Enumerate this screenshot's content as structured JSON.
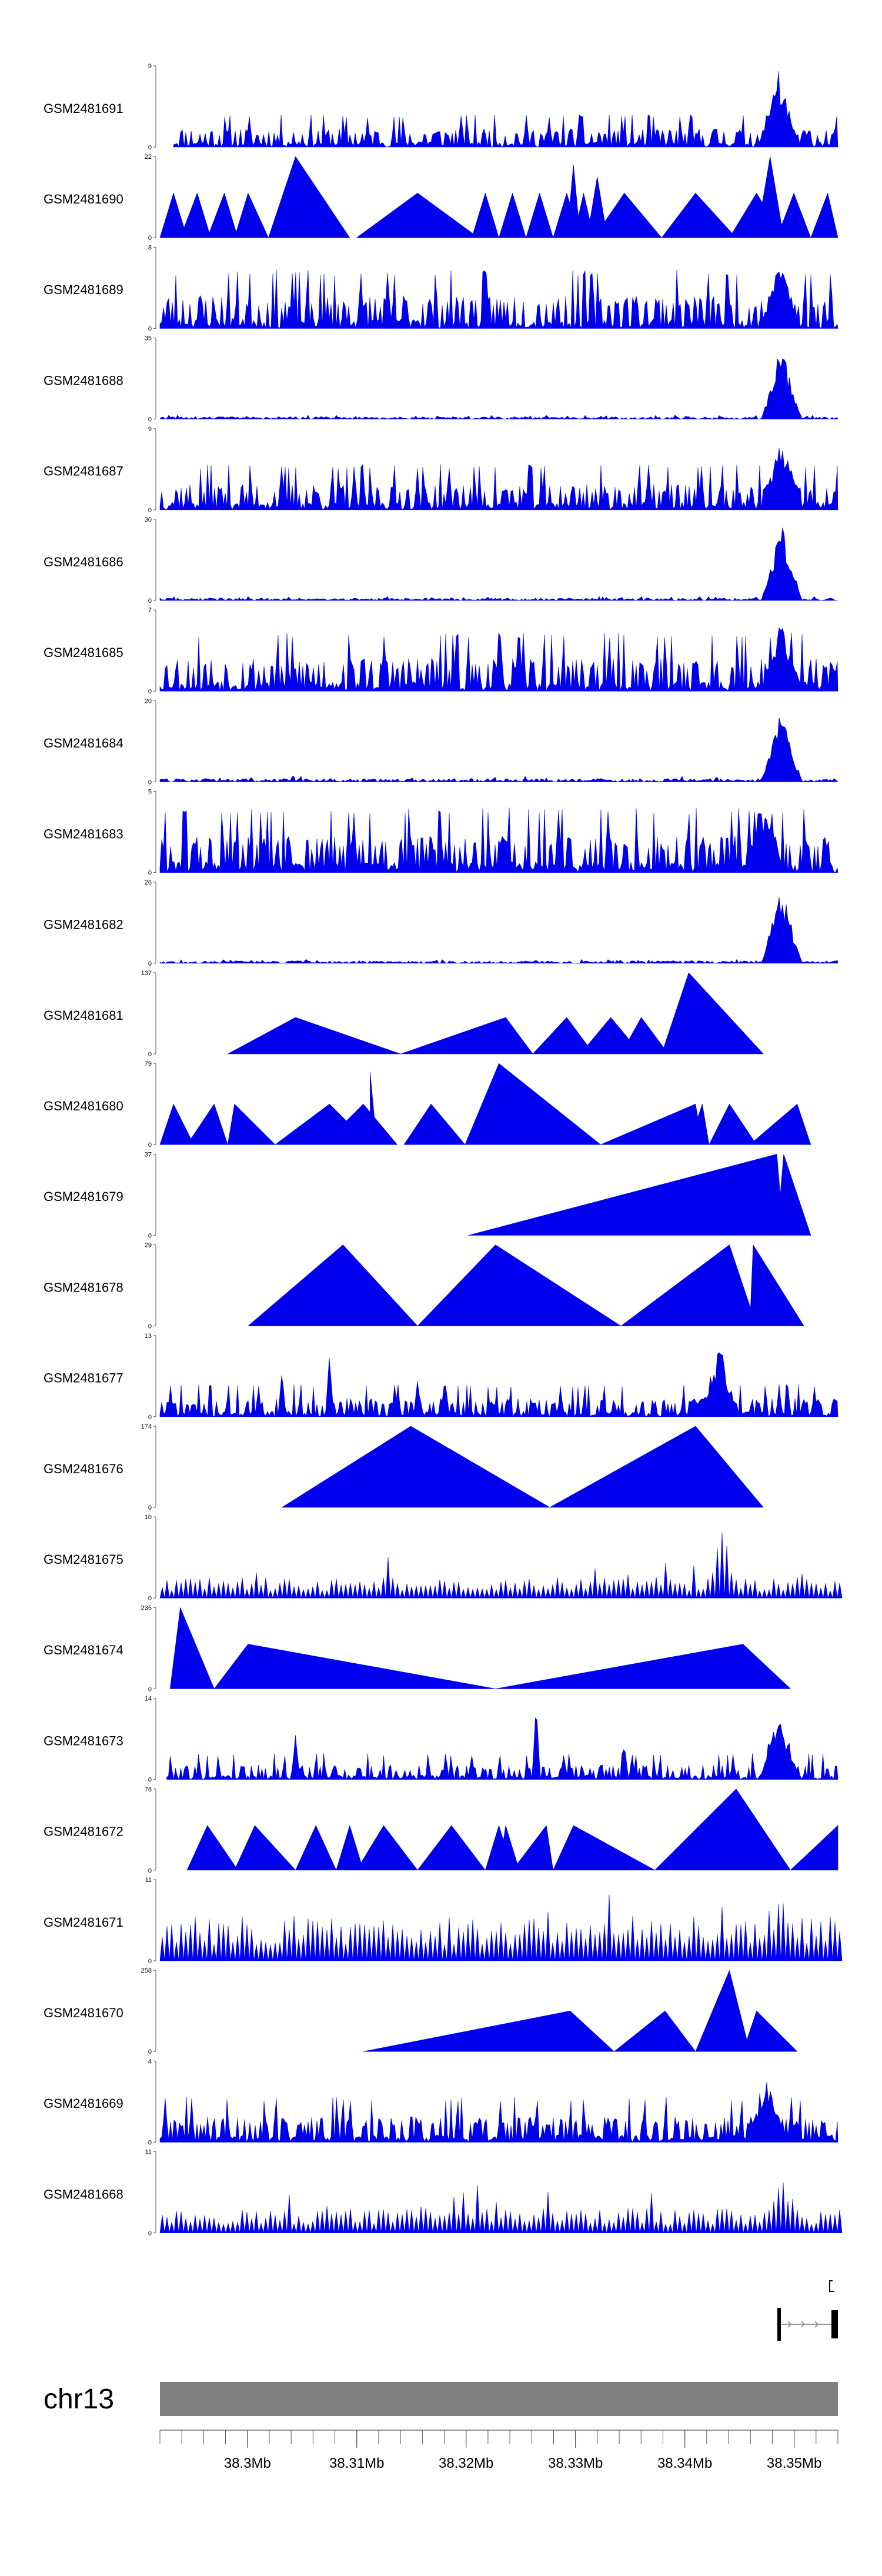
{
  "chart_data": {
    "type": "area",
    "title": "",
    "xlabel": "",
    "ylabel": "",
    "chromosome": "chr13",
    "xlim": [
      38.292,
      38.354
    ],
    "x_unit": "Mb",
    "x_ticks": [
      38.3,
      38.31,
      38.32,
      38.33,
      38.34,
      38.35
    ],
    "x_tick_labels": [
      "38.3Mb",
      "38.31Mb",
      "38.32Mb",
      "38.33Mb",
      "38.34Mb",
      "38.35Mb"
    ],
    "colors": {
      "fill": "#0000ee",
      "axis": "#555555",
      "ideogram": "#808080",
      "gene": "#000000",
      "intron": "#999999"
    },
    "tracks": [
      {
        "name": "GSM2481691",
        "ymax": "9",
        "profile": "dense-peaks",
        "seed": 11,
        "base_frac": 0.25,
        "peak_at": 0.912,
        "peak_frac": 1.0,
        "x_start": 0.02
      },
      {
        "name": "GSM2481690",
        "ymax": "22",
        "profile": "triangles",
        "triangles": [
          [
            0.0,
            0.02,
            0.04,
            0.55
          ],
          [
            0.03,
            0.055,
            0.075,
            0.55
          ],
          [
            0.07,
            0.095,
            0.115,
            0.55
          ],
          [
            0.11,
            0.13,
            0.16,
            0.55
          ],
          [
            0.16,
            0.2,
            0.28,
            1.0
          ],
          [
            0.29,
            0.38,
            0.47,
            0.55
          ],
          [
            0.46,
            0.48,
            0.5,
            0.55
          ],
          [
            0.5,
            0.52,
            0.54,
            0.55
          ],
          [
            0.54,
            0.56,
            0.58,
            0.55
          ],
          [
            0.58,
            0.6,
            0.62,
            0.55
          ],
          [
            0.61,
            0.625,
            0.64,
            0.55
          ],
          [
            0.6,
            0.61,
            0.62,
            0.9
          ],
          [
            0.63,
            0.645,
            0.66,
            0.75
          ],
          [
            0.64,
            0.685,
            0.74,
            0.55
          ],
          [
            0.74,
            0.79,
            0.85,
            0.55
          ],
          [
            0.84,
            0.88,
            0.92,
            0.55
          ],
          [
            0.88,
            0.9,
            0.92,
            1.0
          ],
          [
            0.91,
            0.935,
            0.96,
            0.55
          ],
          [
            0.96,
            0.985,
            1.0,
            0.55
          ]
        ]
      },
      {
        "name": "GSM2481689",
        "ymax": "8",
        "profile": "dense-peaks",
        "seed": 23,
        "base_frac": 0.45,
        "peak_at": 0.915,
        "peak_frac": 0.95,
        "x_start": 0.0
      },
      {
        "name": "GSM2481688",
        "ymax": "35",
        "profile": "sparse-peak",
        "seed": 31,
        "base_frac": 0.05,
        "peak_at": 0.917,
        "peak_frac": 0.95,
        "x_start": 0.0
      },
      {
        "name": "GSM2481687",
        "ymax": "9",
        "profile": "dense-peaks",
        "seed": 37,
        "base_frac": 0.35,
        "peak_at": 0.917,
        "peak_frac": 0.95,
        "x_start": 0.0
      },
      {
        "name": "GSM2481686",
        "ymax": "30",
        "profile": "sparse-peak",
        "seed": 41,
        "base_frac": 0.05,
        "peak_at": 0.917,
        "peak_frac": 0.95,
        "x_start": 0.0
      },
      {
        "name": "GSM2481685",
        "ymax": "7",
        "profile": "dense-peaks",
        "seed": 53,
        "base_frac": 0.45,
        "peak_at": 0.917,
        "peak_frac": 0.95,
        "x_start": 0.0
      },
      {
        "name": "GSM2481684",
        "ymax": "20",
        "profile": "sparse-peak",
        "seed": 59,
        "base_frac": 0.07,
        "peak_at": 0.917,
        "peak_frac": 0.95,
        "x_start": 0.0
      },
      {
        "name": "GSM2481683",
        "ymax": "5",
        "profile": "dense-peaks",
        "seed": 61,
        "base_frac": 0.5,
        "peak_at": 0.893,
        "peak_frac": 0.95,
        "x_start": 0.0
      },
      {
        "name": "GSM2481682",
        "ymax": "26",
        "profile": "sparse-peak",
        "seed": 67,
        "base_frac": 0.05,
        "peak_at": 0.917,
        "peak_frac": 0.95,
        "x_start": 0.0
      },
      {
        "name": "GSM2481681",
        "ymax": "137",
        "profile": "triangles",
        "triangles": [
          [
            0.1,
            0.2,
            0.355,
            0.45
          ],
          [
            0.355,
            0.51,
            0.55,
            0.45
          ],
          [
            0.55,
            0.6,
            0.64,
            0.45
          ],
          [
            0.62,
            0.665,
            0.71,
            0.45
          ],
          [
            0.68,
            0.71,
            0.75,
            0.45
          ],
          [
            0.74,
            0.78,
            0.89,
            0.45
          ],
          [
            0.74,
            0.78,
            0.89,
            1.0
          ]
        ]
      },
      {
        "name": "GSM2481680",
        "ymax": "79",
        "profile": "triangles",
        "triangles": [
          [
            0.0,
            0.02,
            0.05,
            0.5
          ],
          [
            0.04,
            0.08,
            0.1,
            0.5
          ],
          [
            0.1,
            0.11,
            0.17,
            0.5
          ],
          [
            0.17,
            0.25,
            0.31,
            0.5
          ],
          [
            0.24,
            0.3,
            0.35,
            0.5
          ],
          [
            0.31,
            0.31,
            0.32,
            0.9
          ],
          [
            0.36,
            0.4,
            0.45,
            0.5
          ],
          [
            0.45,
            0.5,
            0.65,
            1.0
          ],
          [
            0.65,
            0.79,
            0.8,
            0.5
          ],
          [
            0.78,
            0.8,
            0.81,
            0.5
          ],
          [
            0.81,
            0.84,
            0.88,
            0.5
          ],
          [
            0.87,
            0.94,
            0.96,
            0.5
          ],
          [
            0.93,
            0.94,
            0.95,
            0.5
          ]
        ]
      },
      {
        "name": "GSM2481679",
        "ymax": "37",
        "profile": "triangles",
        "triangles": [
          [
            0.455,
            0.91,
            0.92,
            1.0
          ],
          [
            0.91,
            0.92,
            0.96,
            1.0
          ]
        ]
      },
      {
        "name": "GSM2481678",
        "ymax": "29",
        "profile": "triangles",
        "triangles": [
          [
            0.13,
            0.27,
            0.38,
            1.0
          ],
          [
            0.38,
            0.495,
            0.68,
            1.0
          ],
          [
            0.68,
            0.84,
            0.88,
            1.0
          ],
          [
            0.87,
            0.875,
            0.95,
            1.0
          ]
        ]
      },
      {
        "name": "GSM2481677",
        "ymax": "13",
        "profile": "dense-peaks",
        "seed": 71,
        "base_frac": 0.25,
        "peak_at": 0.825,
        "peak_frac": 0.95,
        "x_start": 0.0,
        "extra_peaks": [
          [
            0.25,
            0.75
          ],
          [
            0.18,
            0.55
          ],
          [
            0.38,
            0.45
          ]
        ]
      },
      {
        "name": "GSM2481676",
        "ymax": "174",
        "profile": "triangles",
        "triangles": [
          [
            0.18,
            0.37,
            0.575,
            1.0
          ],
          [
            0.575,
            0.79,
            0.89,
            1.0
          ]
        ]
      },
      {
        "name": "GSM2481675",
        "ymax": "10",
        "profile": "sawtooth",
        "seed": 73,
        "base_frac": 0.25,
        "peak_at": 0.825,
        "peak_frac": 0.95,
        "x_start": 0.0,
        "extra_peaks": [
          [
            0.335,
            0.75
          ],
          [
            0.64,
            0.5
          ]
        ]
      },
      {
        "name": "GSM2481674",
        "ymax": "235",
        "profile": "triangles",
        "triangles": [
          [
            0.015,
            0.03,
            0.08,
            1.0
          ],
          [
            0.08,
            0.13,
            0.495,
            0.55
          ],
          [
            0.495,
            0.86,
            0.93,
            0.55
          ]
        ]
      },
      {
        "name": "GSM2481673",
        "ymax": "14",
        "profile": "dense-peaks",
        "seed": 79,
        "base_frac": 0.2,
        "peak_at": 0.913,
        "peak_frac": 0.95,
        "x_start": 0.01,
        "extra_peaks": [
          [
            0.555,
            0.95
          ],
          [
            0.2,
            0.55
          ],
          [
            0.685,
            0.45
          ]
        ]
      },
      {
        "name": "GSM2481672",
        "ymax": "76",
        "profile": "triangles",
        "triangles": [
          [
            0.04,
            0.07,
            0.115,
            0.55
          ],
          [
            0.11,
            0.14,
            0.2,
            0.55
          ],
          [
            0.2,
            0.23,
            0.26,
            0.55
          ],
          [
            0.26,
            0.28,
            0.3,
            0.55
          ],
          [
            0.29,
            0.33,
            0.38,
            0.55
          ],
          [
            0.38,
            0.43,
            0.48,
            0.55
          ],
          [
            0.48,
            0.5,
            0.52,
            0.55
          ],
          [
            0.5,
            0.51,
            0.53,
            0.55
          ],
          [
            0.52,
            0.57,
            0.58,
            0.55
          ],
          [
            0.58,
            0.61,
            0.73,
            0.55
          ],
          [
            0.73,
            0.85,
            0.93,
            1.0
          ],
          [
            0.93,
            1.0,
            1.0,
            0.55
          ]
        ]
      },
      {
        "name": "GSM2481671",
        "ymax": "11",
        "profile": "sawtooth",
        "seed": 83,
        "base_frac": 0.55,
        "peak_at": 0.913,
        "peak_frac": 0.95,
        "x_start": 0.0,
        "extra_peaks": [
          [
            0.66,
            0.95
          ],
          [
            0.825,
            0.75
          ]
        ]
      },
      {
        "name": "GSM2481670",
        "ymax": "258",
        "profile": "triangles",
        "triangles": [
          [
            0.3,
            0.605,
            0.67,
            0.5
          ],
          [
            0.67,
            0.745,
            0.79,
            0.5
          ],
          [
            0.79,
            0.84,
            0.87,
            1.0
          ],
          [
            0.86,
            0.88,
            0.94,
            0.5
          ]
        ]
      },
      {
        "name": "GSM2481669",
        "ymax": "4",
        "profile": "dense-peaks",
        "seed": 89,
        "base_frac": 0.35,
        "peak_at": 0.895,
        "peak_frac": 0.95,
        "x_start": 0.0
      },
      {
        "name": "GSM2481668",
        "ymax": "11",
        "profile": "sawtooth",
        "seed": 97,
        "base_frac": 0.3,
        "peak_at": 0.913,
        "peak_frac": 0.95,
        "x_start": 0.0,
        "extra_peaks": [
          [
            0.385,
            0.75
          ],
          [
            0.465,
            0.6
          ]
        ]
      }
    ]
  }
}
